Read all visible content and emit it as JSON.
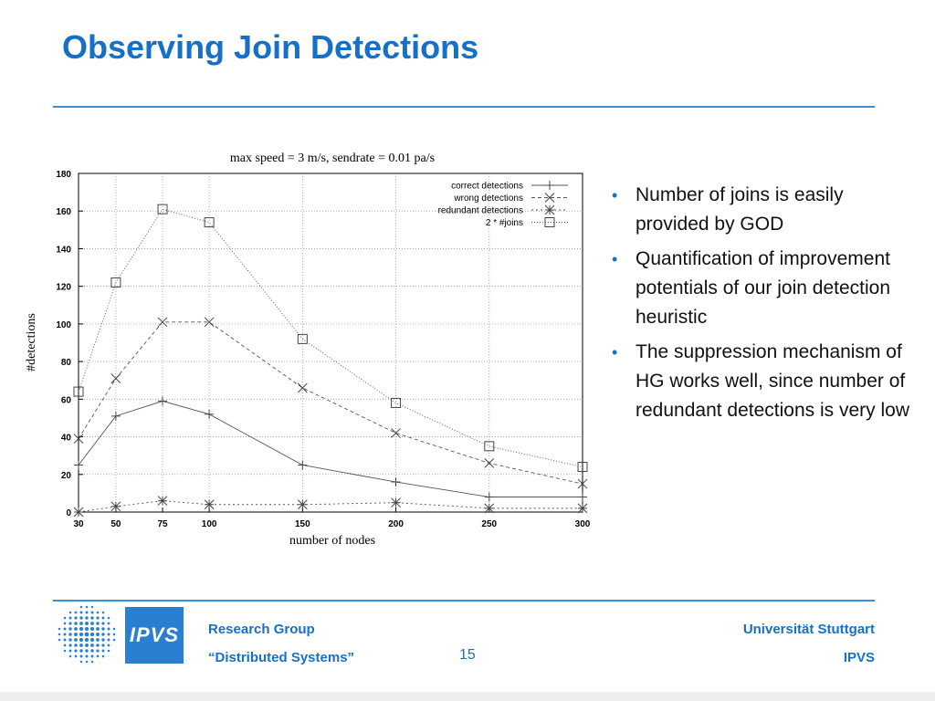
{
  "slide": {
    "title": "Observing Join Detections",
    "page_number": "15"
  },
  "bullets": [
    "Number of joins is easily provided by GOD",
    "Quantification of improvement potentials of our join detection heuristic",
    "The suppression mechanism of HG works well, since number of redundant detections is very low"
  ],
  "footer": {
    "logo_text": "IPVS",
    "left_line1": "Research Group",
    "left_line2": "“Distributed Systems”",
    "right_line1": "Universität Stuttgart",
    "right_line2": "IPVS"
  },
  "colors": {
    "accent": "#1670c8",
    "rule": "#3a8fd8",
    "logo_box": "#2a7fd0"
  },
  "chart_data": {
    "type": "line",
    "title": "max speed = 3 m/s, sendrate = 0.01 pa/s",
    "xlabel": "number of nodes",
    "ylabel": "#detections",
    "x": [
      30,
      50,
      75,
      100,
      150,
      200,
      250,
      300
    ],
    "xticks": [
      "30",
      "50",
      "75",
      "100",
      "150",
      "200",
      "250",
      "300"
    ],
    "yticks": [
      "0",
      "20",
      "40",
      "60",
      "80",
      "100",
      "120",
      "140",
      "160",
      "180"
    ],
    "xlim": [
      30,
      300
    ],
    "ylim": [
      0,
      180
    ],
    "grid": true,
    "legend_position": "top-right",
    "series": [
      {
        "name": "correct detections",
        "marker": "plus",
        "dash": "solid",
        "values": [
          25,
          51,
          59,
          52,
          25,
          16,
          8,
          8
        ]
      },
      {
        "name": "wrong detections",
        "marker": "x",
        "dash": "dashed",
        "values": [
          39,
          71,
          101,
          101,
          66,
          42,
          26,
          15
        ]
      },
      {
        "name": "redundant detections",
        "marker": "star",
        "dash": "dotted",
        "values": [
          0,
          3,
          6,
          4,
          4,
          5,
          2,
          2
        ]
      },
      {
        "name": "2 * #joins",
        "marker": "square",
        "dash": "fine-dotted",
        "values": [
          64,
          122,
          161,
          154,
          92,
          58,
          35,
          24
        ]
      }
    ]
  }
}
